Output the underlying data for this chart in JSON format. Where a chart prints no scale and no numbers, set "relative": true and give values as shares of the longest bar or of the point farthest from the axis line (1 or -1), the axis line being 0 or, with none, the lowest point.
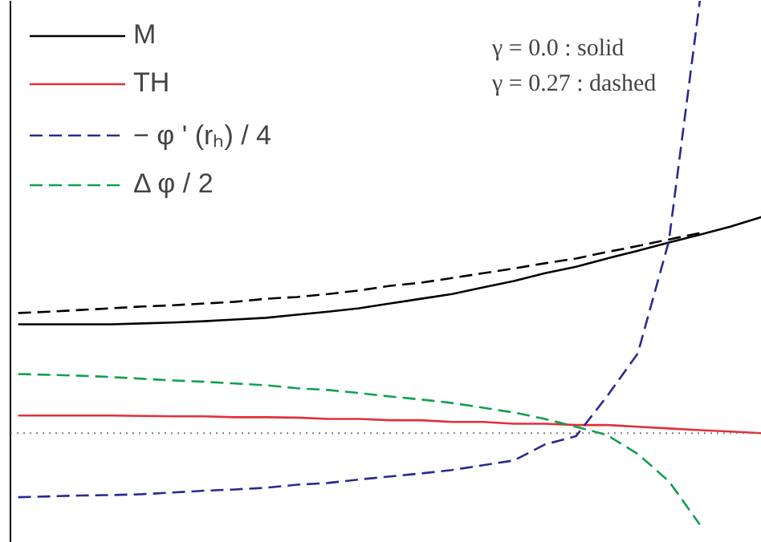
{
  "chart_data": {
    "type": "line",
    "relative": true,
    "categories": [
      null,
      null,
      null,
      null,
      null,
      null,
      null,
      null,
      null,
      null,
      null,
      null,
      null,
      null,
      null,
      null,
      null,
      null,
      null,
      null,
      null,
      null,
      null,
      null,
      null
    ],
    "series": [
      {
        "name": "M",
        "color": "#000000",
        "line_style": "solid",
        "values": [
          0.252,
          0.252,
          0.252,
          0.252,
          0.254,
          0.256,
          0.259,
          0.263,
          0.267,
          0.274,
          0.281,
          0.289,
          0.3,
          0.311,
          0.322,
          0.337,
          0.352,
          0.37,
          0.385,
          0.404,
          0.422,
          0.441,
          0.459,
          0.478,
          0.5
        ]
      },
      {
        "color": "#000000",
        "line_style": "dashed",
        "values": [
          0.278,
          0.281,
          0.285,
          0.289,
          0.293,
          0.296,
          0.3,
          0.304,
          0.311,
          0.315,
          0.322,
          0.33,
          0.341,
          0.348,
          0.359,
          0.37,
          0.381,
          0.393,
          0.404,
          0.419,
          0.433,
          0.448,
          0.463,
          null,
          null
        ]
      },
      {
        "name": "TH",
        "color": "#e0303a",
        "line_style": "solid",
        "values": [
          0.041,
          0.041,
          0.041,
          0.041,
          0.04,
          0.039,
          0.039,
          0.037,
          0.037,
          0.036,
          0.033,
          0.033,
          0.03,
          0.03,
          0.026,
          0.026,
          0.022,
          0.022,
          0.019,
          0.019,
          0.015,
          0.011,
          0.007,
          0.004,
          0
        ]
      },
      {
        "name": "− φ ' (rₕ) / 4",
        "color": "#2a2a90",
        "line_style": "dashed",
        "values": [
          -0.148,
          -0.146,
          -0.144,
          -0.143,
          -0.141,
          -0.137,
          -0.133,
          -0.13,
          -0.126,
          -0.119,
          -0.115,
          -0.107,
          -0.1,
          -0.093,
          -0.085,
          -0.074,
          -0.063,
          -0.026,
          -0.007,
          0.085,
          0.185,
          0.444,
          1.0,
          null,
          null
        ]
      },
      {
        "name": "Δ φ / 2",
        "color": "#10a050",
        "line_style": "dashed",
        "values": [
          0.137,
          0.135,
          0.133,
          0.13,
          0.126,
          0.122,
          0.119,
          0.115,
          0.111,
          0.104,
          0.1,
          0.093,
          0.085,
          0.078,
          0.07,
          0.059,
          0.048,
          0.033,
          0.015,
          -0.004,
          -0.048,
          -0.111,
          -0.211,
          null,
          null
        ]
      }
    ],
    "ref_lines": [
      {
        "axis": "y",
        "value": 0,
        "color": "#808080",
        "line_style": "dotted"
      }
    ],
    "annotations": [
      "γ = 0.0    : solid",
      "γ = 0.27 :    dashed"
    ],
    "legend": "top left",
    "grid": false
  }
}
